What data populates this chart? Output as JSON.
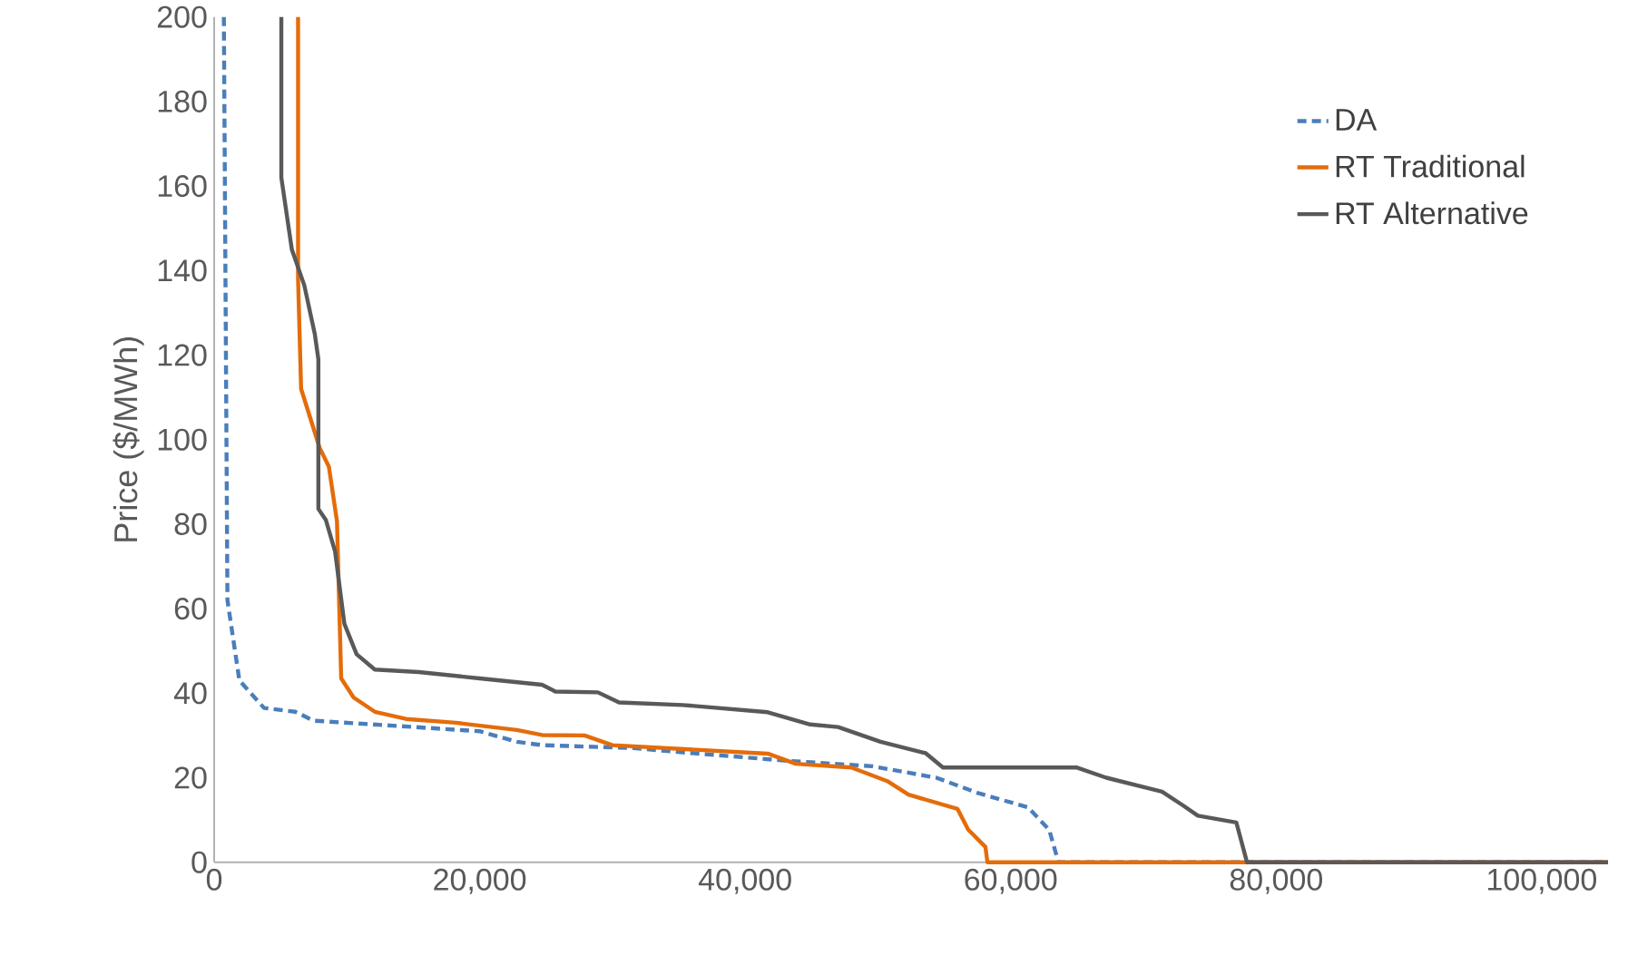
{
  "chart_data": {
    "type": "line",
    "ylabel": "Price ($/MWh)",
    "xlim": [
      0,
      105000
    ],
    "ylim": [
      0,
      200
    ],
    "xticks": [
      0,
      {
        "value": 20000,
        "label": "20,000"
      },
      {
        "value": 40000,
        "label": "40,000"
      },
      {
        "value": 60000,
        "label": "60,000"
      },
      {
        "value": 80000,
        "label": "80,000"
      },
      {
        "value": 100000,
        "label": "100,000"
      }
    ],
    "yticks": [
      0,
      20,
      40,
      60,
      80,
      100,
      120,
      140,
      160,
      180,
      200
    ],
    "legend": "top right",
    "grid": false,
    "marker": "none",
    "series": [
      {
        "name": "DA",
        "color": "#4a7ebb",
        "line_style": "dashed",
        "x": [
          730,
          1000,
          1900,
          3760,
          6100,
          7490,
          20000,
          22800,
          24700,
          31600,
          35300,
          43200,
          49600,
          54400,
          57600,
          61300,
          62900,
          63600,
          105000
        ],
        "values": [
          200,
          62,
          43,
          36.5,
          35.6,
          33.5,
          31,
          28.5,
          27.7,
          27,
          26,
          24,
          22.7,
          20,
          16.3,
          13,
          7.7,
          0,
          0
        ]
      },
      {
        "name": "RT Traditional",
        "color": "#e46c0a",
        "line_style": "solid",
        "x": [
          6320,
          6320,
          6550,
          7950,
          8640,
          9250,
          9570,
          10500,
          12100,
          14450,
          18200,
          22800,
          24700,
          27900,
          30000,
          41700,
          43800,
          48000,
          50700,
          52300,
          56000,
          56800,
          58100,
          58250,
          105000
        ],
        "values": [
          200,
          138,
          112,
          98,
          93.6,
          80.7,
          43.5,
          39,
          35.6,
          33.9,
          33,
          31.3,
          30.1,
          30,
          27.7,
          25.7,
          23.3,
          22.4,
          19.2,
          16,
          12.6,
          7.7,
          3.6,
          0,
          0
        ]
      },
      {
        "name": "RT Alternative",
        "color": "#595959",
        "line_style": "solid",
        "x": [
          5060,
          5060,
          5850,
          6790,
          7580,
          7850,
          7850,
          8410,
          9110,
          9810,
          10730,
          12100,
          15400,
          20000,
          24700,
          25700,
          28900,
          30500,
          35300,
          41700,
          44900,
          47000,
          50200,
          53600,
          54900,
          65000,
          67200,
          71400,
          73000,
          74100,
          77000,
          77800,
          105000
        ],
        "values": [
          200,
          162,
          145,
          136.5,
          125,
          119,
          83.6,
          81,
          73.5,
          56.4,
          49.2,
          45.6,
          45,
          43.5,
          42,
          40.4,
          40.2,
          37.8,
          37.2,
          35.5,
          32.6,
          32,
          28.5,
          25.8,
          22.4,
          22.4,
          20,
          16.7,
          13.4,
          11,
          9.4,
          0,
          0
        ]
      }
    ]
  }
}
